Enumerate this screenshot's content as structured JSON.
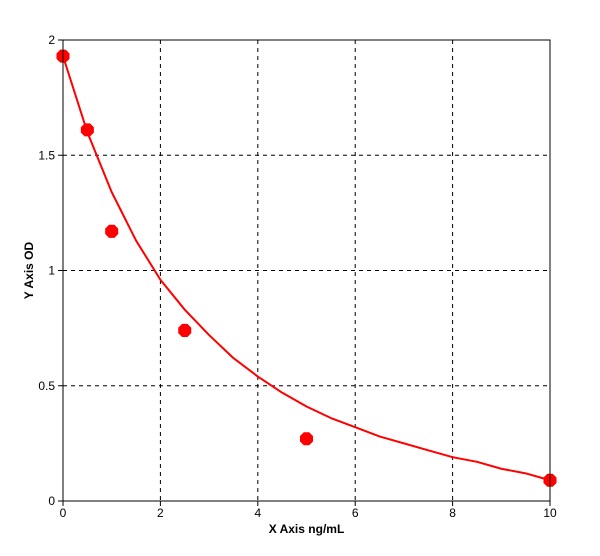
{
  "chart_data": {
    "type": "scatter",
    "xlabel": "X Axis ng/mL",
    "ylabel": "Y Axis OD",
    "xlim": [
      0,
      10
    ],
    "ylim": [
      0,
      2
    ],
    "x_ticks": [
      0,
      2,
      4,
      6,
      8,
      10
    ],
    "y_ticks": [
      0,
      0.5,
      1,
      1.5,
      2
    ],
    "x_tick_labels": [
      "0",
      "2",
      "4",
      "6",
      "8",
      "10"
    ],
    "y_tick_labels": [
      "0",
      "0.5",
      "1",
      "1.5",
      "2"
    ],
    "grid": true,
    "grid_style": "dashed",
    "series": [
      {
        "type": "scatter",
        "color": "#ff0000",
        "x": [
          0,
          0.5,
          1,
          2.5,
          5,
          10
        ],
        "y": [
          1.93,
          1.61,
          1.17,
          0.74,
          0.27,
          0.09
        ]
      },
      {
        "type": "line",
        "color": "#ff0000",
        "x": [
          0,
          0.5,
          1,
          1.5,
          2,
          2.5,
          3,
          3.5,
          4,
          4.5,
          5,
          5.5,
          6,
          6.5,
          7,
          7.5,
          8,
          8.5,
          9,
          9.5,
          10
        ],
        "y": [
          1.93,
          1.6,
          1.34,
          1.13,
          0.96,
          0.83,
          0.72,
          0.62,
          0.54,
          0.47,
          0.41,
          0.36,
          0.32,
          0.28,
          0.25,
          0.22,
          0.19,
          0.17,
          0.14,
          0.12,
          0.09
        ]
      }
    ],
    "colors": {
      "marker": "#ff0000",
      "curve": "#ff0000",
      "grid": "#000000",
      "axes": "#000000"
    }
  }
}
